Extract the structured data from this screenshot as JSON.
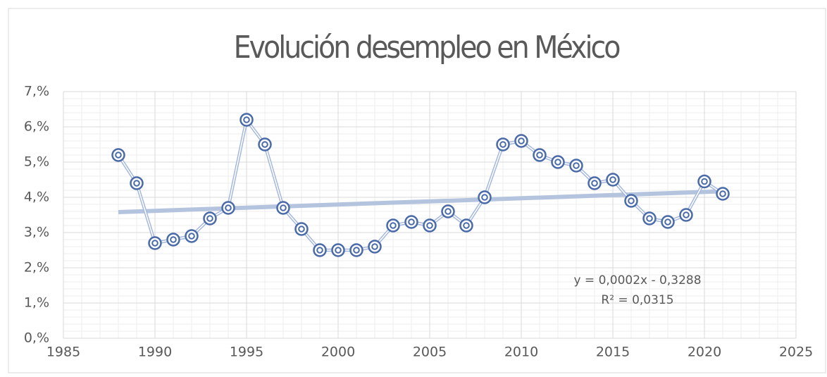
{
  "chart_data": {
    "type": "line",
    "title": "Evolución desempleo en México",
    "x": [
      1988,
      1989,
      1990,
      1991,
      1992,
      1993,
      1994,
      1995,
      1996,
      1997,
      1998,
      1999,
      2000,
      2001,
      2002,
      2003,
      2004,
      2005,
      2006,
      2007,
      2008,
      2009,
      2010,
      2011,
      2012,
      2013,
      2014,
      2015,
      2016,
      2017,
      2018,
      2019,
      2020,
      2021
    ],
    "series": [
      {
        "color": "#4a6aa8",
        "values": [
          5.2,
          4.4,
          2.7,
          2.8,
          2.9,
          3.4,
          3.7,
          6.2,
          5.5,
          3.7,
          3.1,
          2.5,
          2.5,
          2.5,
          2.6,
          3.2,
          3.3,
          3.2,
          3.6,
          3.2,
          4.0,
          5.5,
          5.6,
          5.2,
          5.0,
          4.9,
          4.4,
          4.5,
          3.9,
          3.4,
          3.3,
          3.5,
          4.45,
          4.1
        ]
      }
    ],
    "trendline": {
      "x": [
        1988,
        2021
      ],
      "values": [
        3.58,
        4.17
      ],
      "color": "#b4c4de"
    },
    "annotations": [
      "y = 0,0002x - 0,3288",
      "R² = 0,0315"
    ],
    "xlim": [
      1985,
      2025
    ],
    "xticks": [
      1985,
      1990,
      1995,
      2000,
      2005,
      2010,
      2015,
      2020,
      2025
    ],
    "ylim": [
      0,
      7
    ],
    "yticks": [
      {
        "value": 0,
        "label": "0,%"
      },
      {
        "value": 1,
        "label": "1,%"
      },
      {
        "value": 2,
        "label": "2,%"
      },
      {
        "value": 3,
        "label": "3,%"
      },
      {
        "value": 4,
        "label": "4,%"
      },
      {
        "value": 5,
        "label": "5,%"
      },
      {
        "value": 6,
        "label": "6,%"
      },
      {
        "value": 7,
        "label": "7,%"
      }
    ],
    "grid": true
  }
}
